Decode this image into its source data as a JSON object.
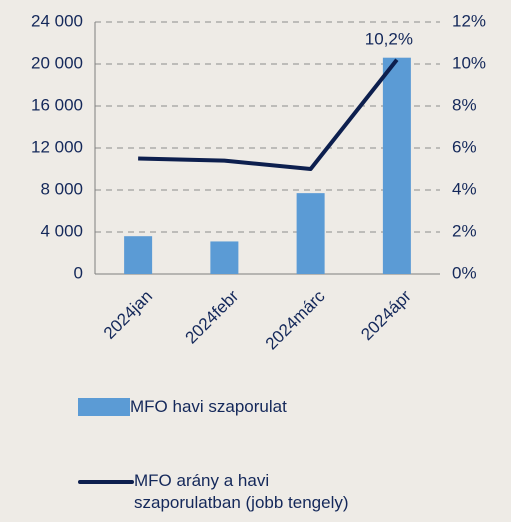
{
  "chart_data": {
    "type": "bar-line",
    "categories": [
      "2024jan",
      "2024febr",
      "2024márc",
      "2024ápr"
    ],
    "series": [
      {
        "name": "MFO havi szaporulat",
        "type": "bar",
        "color": "#5b9bd5",
        "values": [
          3600,
          3100,
          7700,
          20600
        ]
      },
      {
        "name": "MFO arány a havi szaporulatban (jobb tengely)",
        "type": "line",
        "axis": "y2",
        "color": "#0d1f4e",
        "values": [
          5.5,
          5.4,
          5.0,
          10.2
        ],
        "value_labels": [
          null,
          null,
          null,
          "10,2%"
        ]
      }
    ],
    "ylim": [
      0,
      24000
    ],
    "yticks": [
      0,
      {
        "value": 4000,
        "label": "4 000"
      },
      {
        "value": 8000,
        "label": "8 000"
      },
      {
        "value": 12000,
        "label": "12 000"
      },
      {
        "value": 16000,
        "label": "16 000"
      },
      {
        "value": 20000,
        "label": "20 000"
      },
      {
        "value": 24000,
        "label": "24 000"
      }
    ],
    "y2lim": [
      0,
      12
    ],
    "y2ticks": [
      {
        "value": 0,
        "label": "0%"
      },
      {
        "value": 2,
        "label": "2%"
      },
      {
        "value": 4,
        "label": "4%"
      },
      {
        "value": 6,
        "label": "6%"
      },
      {
        "value": 8,
        "label": "8%"
      },
      {
        "value": 10,
        "label": "10%"
      },
      {
        "value": 12,
        "label": "12%"
      }
    ],
    "grid": true,
    "legend": "bottom"
  }
}
